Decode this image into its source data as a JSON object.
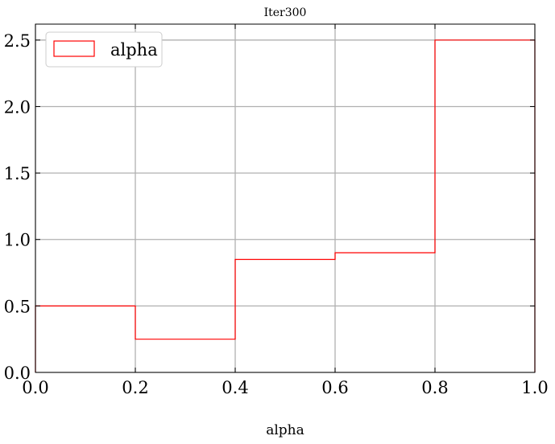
{
  "chart_data": {
    "type": "histogram-step",
    "title": "Iter300",
    "xlabel": "alpha",
    "ylabel": "",
    "xlim": [
      0.0,
      1.0
    ],
    "ylim": [
      0.0,
      2.62
    ],
    "x_ticks": [
      0.0,
      0.2,
      0.4,
      0.6,
      0.8,
      1.0
    ],
    "x_tick_labels": [
      "0.0",
      "0.2",
      "0.4",
      "0.6",
      "0.8",
      "1.0"
    ],
    "y_ticks": [
      0.0,
      0.5,
      1.0,
      1.5,
      2.0,
      2.5
    ],
    "y_tick_labels": [
      "0.0",
      "0.5",
      "1.0",
      "1.5",
      "2.0",
      "2.5"
    ],
    "grid": true,
    "legend_position": "top-left",
    "series": [
      {
        "name": "alpha",
        "color": "#ff0000",
        "bin_edges": [
          0.0,
          0.2,
          0.4,
          0.6,
          0.8,
          1.0
        ],
        "values": [
          0.5,
          0.25,
          0.85,
          0.9,
          2.5
        ]
      }
    ]
  }
}
